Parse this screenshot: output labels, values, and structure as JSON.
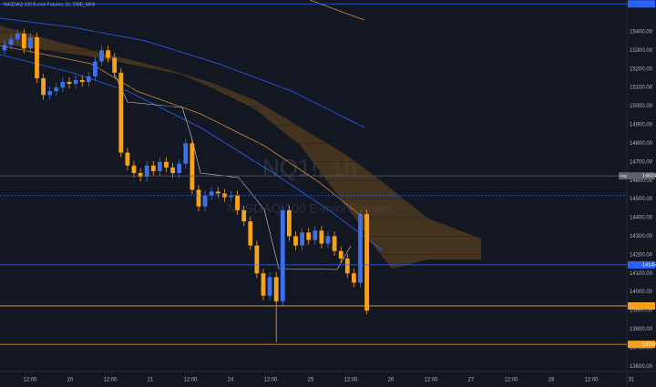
{
  "chart_data": {
    "type": "candlestick",
    "title": "NASDAQ 100 E-mini Futures, 1h, CME_MINI",
    "watermark": "NQ1!, 1h",
    "watermark_subtitle": "NASDAQ 100 E-mini Futures",
    "open": [
      15300,
      15330,
      15360,
      15390,
      15310,
      15370,
      15150,
      15060,
      15080,
      15100,
      15130,
      15120,
      15140,
      15130,
      15160,
      15240,
      15300,
      15260,
      15180,
      14750,
      14680,
      14640,
      14620,
      14680,
      14650,
      14700,
      14670,
      14640,
      14690,
      14800,
      14550,
      14460,
      14520,
      14540,
      14530,
      14510,
      14520,
      14440,
      14380,
      14250,
      14100,
      13980,
      14080,
      13950,
      14440,
      14300,
      14250,
      14320,
      14280,
      14330,
      14260,
      14300,
      14220,
      14180,
      14100,
      14050,
      14420
    ],
    "high": [
      15360,
      15385,
      15415,
      15415,
      15395,
      15395,
      15175,
      15105,
      15125,
      15155,
      15155,
      15165,
      15165,
      15185,
      15265,
      15325,
      15325,
      15285,
      15205,
      14775,
      14705,
      14665,
      14705,
      14705,
      14725,
      14725,
      14695,
      14715,
      14825,
      14825,
      14575,
      14545,
      14565,
      14565,
      14555,
      14545,
      14545,
      14465,
      14405,
      14275,
      14125,
      14105,
      14105,
      14465,
      14465,
      14325,
      14345,
      14345,
      14355,
      14355,
      14325,
      14325,
      14245,
      14205,
      14125,
      14445,
      14445
    ],
    "low": [
      15280,
      15305,
      15335,
      15285,
      15285,
      15125,
      15035,
      15035,
      15055,
      15075,
      15095,
      15095,
      15105,
      15105,
      15135,
      15215,
      15235,
      15155,
      14725,
      14655,
      14615,
      14595,
      14595,
      14625,
      14625,
      14645,
      14615,
      14615,
      14665,
      14525,
      14435,
      14435,
      14495,
      14505,
      14485,
      14485,
      14415,
      14355,
      14225,
      14075,
      13955,
      13955,
      13730,
      13925,
      14275,
      14225,
      14225,
      14255,
      14255,
      14235,
      14235,
      14195,
      14155,
      14075,
      14025,
      14025,
      13880
    ],
    "close": [
      15330,
      15360,
      15390,
      15310,
      15370,
      15150,
      15060,
      15080,
      15100,
      15130,
      15120,
      15140,
      15130,
      15160,
      15240,
      15300,
      15260,
      15180,
      14750,
      14680,
      14640,
      14620,
      14680,
      14650,
      14700,
      14670,
      14640,
      14690,
      14800,
      14550,
      14460,
      14520,
      14540,
      14530,
      14510,
      14520,
      14440,
      14380,
      14250,
      14100,
      13980,
      14080,
      13950,
      14440,
      14300,
      14250,
      14320,
      14280,
      14330,
      14260,
      14300,
      14220,
      14180,
      14100,
      14050,
      14420,
      13900
    ],
    "up_color": "#3d6fe8",
    "down_color": "#f7a21b",
    "ylim": [
      13572,
      15571
    ],
    "yticks": [
      {
        "value": 13600,
        "label": "13600.00"
      },
      {
        "value": 13700,
        "label": "13700.00"
      },
      {
        "value": 13800,
        "label": "13800.00"
      },
      {
        "value": 13900,
        "label": "13900.00"
      },
      {
        "value": 14000,
        "label": "14000.00"
      },
      {
        "value": 14100,
        "label": "14100.00"
      },
      {
        "value": 14200,
        "label": "14200.00"
      },
      {
        "value": 14300,
        "label": "14300.00"
      },
      {
        "value": 14400,
        "label": "14400.00"
      },
      {
        "value": 14500,
        "label": "14500.00"
      },
      {
        "value": 14600,
        "label": "14600.00"
      },
      {
        "value": 14700,
        "label": "14700.00"
      },
      {
        "value": 14800,
        "label": "14800.00"
      },
      {
        "value": 14900,
        "label": "14900.00"
      },
      {
        "value": 15000,
        "label": "15000.00"
      },
      {
        "value": 15100,
        "label": "15100.00"
      },
      {
        "value": 15200,
        "label": "15200.00"
      },
      {
        "value": 15300,
        "label": "15300.00"
      },
      {
        "value": 15400,
        "label": "15400.00"
      }
    ],
    "xticks": [
      "12:00",
      "20",
      "12:00",
      "21",
      "12:00",
      "24",
      "12:00",
      "25",
      "12:00",
      "26",
      "12:00",
      "27",
      "12:00",
      "28",
      "12:00",
      "31"
    ],
    "levels": [
      {
        "value": 15550,
        "color": "#2962ff"
      },
      {
        "value": 14624.75,
        "label": "14624.75",
        "tag": "Avg",
        "color": "#5d606b"
      },
      {
        "value": 14519,
        "color": "#2962ff",
        "dashed": true
      },
      {
        "value": 14145.75,
        "label": "14145.75",
        "color": "#2962ff"
      },
      {
        "value": 13925,
        "color": "#f7a21b"
      },
      {
        "value": 13718.25,
        "label": "13718.25",
        "color": "#f7a21b"
      }
    ]
  }
}
